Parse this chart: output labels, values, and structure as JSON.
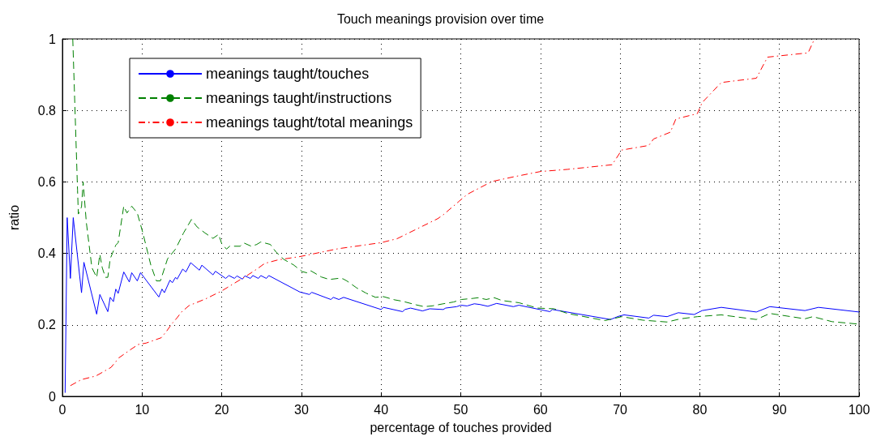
{
  "chart_data": {
    "type": "line",
    "title": "Touch meanings provision over time",
    "xlabel": "percentage of touches provided",
    "ylabel": "ratio",
    "xlim": [
      0,
      100
    ],
    "xticks": [
      0,
      10,
      20,
      30,
      40,
      50,
      60,
      70,
      80,
      90,
      100
    ],
    "ylim": [
      0,
      1
    ],
    "yticks": [
      0,
      0.2,
      0.4,
      0.6,
      0.8,
      1
    ],
    "grid": true,
    "legend": "top left",
    "marker": "none",
    "series": [
      {
        "name": "meanings taught/touches",
        "color": "#0000ff",
        "line_style": "solid",
        "x": [
          0.34,
          0.6,
          1.0,
          1.36,
          2.4,
          2.7,
          4.3,
          4.7,
          5.7,
          6.0,
          6.4,
          6.7,
          7.0,
          7.7,
          8.4,
          8.7,
          9.4,
          9.8,
          12.1,
          12.5,
          12.8,
          13.5,
          13.8,
          14.2,
          14.4,
          15.1,
          15.5,
          16.1,
          17.2,
          17.5,
          18.9,
          19.2,
          20.5,
          20.9,
          21.6,
          21.9,
          22.6,
          22.9,
          23.6,
          23.9,
          24.6,
          24.9,
          25.6,
          25.9,
          29.8,
          31.0,
          31.3,
          33.7,
          34.0,
          34.7,
          35.3,
          40.0,
          40.3,
          42.7,
          43.0,
          43.7,
          45.2,
          46.1,
          47.8,
          48.1,
          49.5,
          50.0,
          50.8,
          51.7,
          52.4,
          53.4,
          54.5,
          56.6,
          57.3,
          61.2,
          61.5,
          68.8,
          69.8,
          70.5,
          73.6,
          74.2,
          75.9,
          77.3,
          79.3,
          80.3,
          82.7,
          87.1,
          88.8,
          93.2,
          94.9,
          100
        ],
        "values": [
          0.01,
          0.5,
          0.33,
          0.5,
          0.29,
          0.375,
          0.23,
          0.285,
          0.237,
          0.277,
          0.265,
          0.3,
          0.288,
          0.348,
          0.32,
          0.346,
          0.323,
          0.346,
          0.278,
          0.3,
          0.29,
          0.325,
          0.318,
          0.333,
          0.328,
          0.356,
          0.348,
          0.374,
          0.353,
          0.367,
          0.34,
          0.35,
          0.33,
          0.338,
          0.33,
          0.337,
          0.328,
          0.337,
          0.33,
          0.338,
          0.33,
          0.338,
          0.33,
          0.338,
          0.292,
          0.285,
          0.291,
          0.271,
          0.277,
          0.271,
          0.277,
          0.243,
          0.249,
          0.237,
          0.243,
          0.247,
          0.239,
          0.245,
          0.243,
          0.247,
          0.251,
          0.255,
          0.253,
          0.259,
          0.257,
          0.252,
          0.26,
          0.251,
          0.255,
          0.237,
          0.243,
          0.215,
          0.224,
          0.228,
          0.219,
          0.227,
          0.223,
          0.234,
          0.229,
          0.24,
          0.249,
          0.236,
          0.251,
          0.24,
          0.249,
          0.236
        ]
      },
      {
        "name": "meanings taught/instructions",
        "color": "#008000",
        "line_style": "dashed",
        "x": [
          1.3,
          1.9,
          2.0,
          2.4,
          2.6,
          3.0,
          3.7,
          4.3,
          4.7,
          5.0,
          5.4,
          5.7,
          6.0,
          6.7,
          7.0,
          7.7,
          8.1,
          8.7,
          9.4,
          10.1,
          11.1,
          11.8,
          12.3,
          13.2,
          14.2,
          15.2,
          16.2,
          16.9,
          17.9,
          18.9,
          19.6,
          20.0,
          20.6,
          21.0,
          22.3,
          22.8,
          23.7,
          24.4,
          24.9,
          26.1,
          26.8,
          27.8,
          29.0,
          30.1,
          30.8,
          31.2,
          32.5,
          33.5,
          34.6,
          35.2,
          35.7,
          36.9,
          38.1,
          39.3,
          40.3,
          41.7,
          42.7,
          44.4,
          45.4,
          46.4,
          47.8,
          49.1,
          50.1,
          51.5,
          52.2,
          53.2,
          54.2,
          55.2,
          57.3,
          59.6,
          61.7,
          63.4,
          68.1,
          70.2,
          72.9,
          75.9,
          77.6,
          79.7,
          82.7,
          87.1,
          88.8,
          93.2,
          94.2,
          96.6,
          100
        ],
        "values": [
          1.0,
          0.577,
          0.51,
          0.53,
          0.6,
          0.487,
          0.36,
          0.333,
          0.397,
          0.36,
          0.333,
          0.333,
          0.385,
          0.423,
          0.43,
          0.532,
          0.513,
          0.532,
          0.513,
          0.457,
          0.367,
          0.323,
          0.323,
          0.385,
          0.412,
          0.457,
          0.495,
          0.474,
          0.457,
          0.442,
          0.453,
          0.427,
          0.412,
          0.42,
          0.42,
          0.429,
          0.42,
          0.425,
          0.432,
          0.425,
          0.404,
          0.383,
          0.368,
          0.349,
          0.345,
          0.351,
          0.334,
          0.327,
          0.33,
          0.329,
          0.323,
          0.304,
          0.289,
          0.277,
          0.279,
          0.27,
          0.266,
          0.256,
          0.251,
          0.253,
          0.259,
          0.264,
          0.271,
          0.274,
          0.276,
          0.271,
          0.276,
          0.268,
          0.262,
          0.247,
          0.245,
          0.232,
          0.212,
          0.223,
          0.213,
          0.208,
          0.217,
          0.223,
          0.228,
          0.215,
          0.232,
          0.217,
          0.223,
          0.209,
          0.202
        ]
      },
      {
        "name": "meanings taught/total meanings",
        "color": "#ff0000",
        "line_style": "dashdot",
        "x": [
          1.0,
          2.4,
          4.2,
          6.1,
          7.1,
          8.5,
          9.5,
          10.5,
          12.4,
          13.1,
          13.7,
          14.4,
          14.9,
          15.9,
          18.0,
          20.0,
          21.4,
          23.1,
          24.4,
          25.4,
          27.1,
          29.8,
          34.6,
          40.0,
          42.0,
          47.1,
          47.8,
          49.8,
          50.8,
          53.9,
          56.6,
          60.0,
          63.4,
          69.0,
          70.2,
          73.6,
          74.2,
          76.3,
          77.0,
          79.7,
          80.3,
          82.7,
          87.1,
          88.5,
          93.6,
          94.4
        ],
        "values": [
          0.03,
          0.047,
          0.057,
          0.081,
          0.108,
          0.13,
          0.145,
          0.149,
          0.164,
          0.183,
          0.202,
          0.22,
          0.235,
          0.254,
          0.273,
          0.295,
          0.314,
          0.337,
          0.356,
          0.372,
          0.382,
          0.391,
          0.413,
          0.43,
          0.441,
          0.497,
          0.508,
          0.546,
          0.565,
          0.601,
          0.614,
          0.629,
          0.635,
          0.648,
          0.689,
          0.702,
          0.72,
          0.739,
          0.776,
          0.791,
          0.822,
          0.878,
          0.89,
          0.949,
          0.961,
          1.0
        ]
      }
    ]
  }
}
